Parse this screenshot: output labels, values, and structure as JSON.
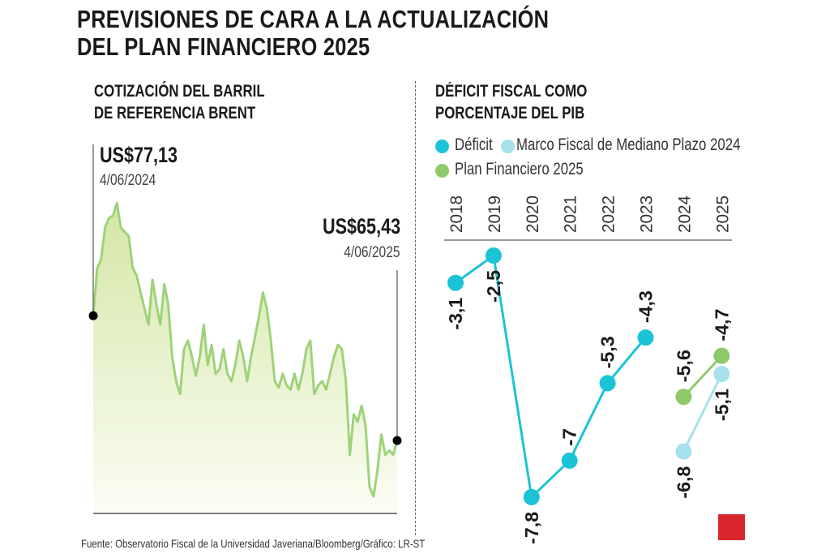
{
  "title_line1": "PREVISIONES DE CARA A LA ACTUALIZACIÓN",
  "title_line2": "DEL PLAN FINANCIERO 2025",
  "source": "Fuente: Observatorio Fiscal de la Universidad Javeriana/Bloomberg/Gráfico: LR-ST",
  "logo": "LR",
  "colors": {
    "deficit": "#1cc3d6",
    "mfmp": "#a6e1ec",
    "plan": "#8ec96a",
    "brent_line": "#9fd27a"
  },
  "chart_data": [
    {
      "type": "area",
      "title_line1": "COTIZACIÓN DEL BARRIL",
      "title_line2": "DE REFERENCIA BRENT",
      "ylim": [
        58.6,
        93.8
      ],
      "start": {
        "label": "US$77,13",
        "date": "4/06/2024",
        "value": 77.13
      },
      "end": {
        "label": "US$65,43",
        "date": "4/06/2025",
        "value": 65.43
      },
      "values": [
        77.1,
        81.6,
        82.4,
        85.4,
        86.3,
        86.5,
        87.7,
        85.4,
        85.0,
        84.6,
        81.6,
        80.9,
        79.3,
        77.8,
        76.3,
        80.5,
        78.2,
        76.3,
        80.1,
        78.2,
        73.3,
        71.0,
        69.8,
        74.0,
        74.8,
        73.3,
        71.5,
        73.3,
        76.3,
        72.5,
        74.4,
        71.7,
        72.1,
        74.0,
        71.7,
        71.0,
        72.5,
        74.8,
        73.3,
        71.0,
        73.3,
        75.2,
        77.1,
        79.3,
        77.8,
        74.8,
        71.0,
        70.4,
        71.7,
        70.6,
        70.2,
        71.7,
        70.2,
        71.7,
        74.0,
        74.8,
        69.8,
        70.6,
        71.0,
        70.2,
        71.7,
        73.3,
        74.4,
        74.0,
        71.0,
        64.1,
        67.9,
        67.2,
        68.7,
        66.8,
        61.1,
        60.2,
        62.6,
        66.0,
        64.1,
        64.5,
        64.1,
        65.43
      ]
    },
    {
      "type": "line",
      "title_line1": "DÉFICIT FISCAL COMO",
      "title_line2": "PORCENTAJE DEL PIB",
      "legend": [
        "Déficit",
        "Marco Fiscal de Mediano Plazo 2024",
        "Plan Financiero 2025"
      ],
      "categories": [
        "2018",
        "2019",
        "2020",
        "2021",
        "2022",
        "2023",
        "2024",
        "2025"
      ],
      "ylim": [
        -8,
        -2
      ],
      "series": [
        {
          "name": "Déficit",
          "x": [
            "2018",
            "2019",
            "2020",
            "2021",
            "2022",
            "2023"
          ],
          "values": [
            -3.1,
            -2.5,
            -7.8,
            -7,
            -5.3,
            -4.3
          ],
          "labels": [
            "-3,1",
            "-2,5",
            "-7,8",
            "-7",
            "-5,3",
            "-4,3"
          ],
          "label_pos": [
            "below",
            "below",
            "below",
            "above",
            "above",
            "above"
          ]
        },
        {
          "name": "Marco Fiscal de Mediano Plazo 2024",
          "x": [
            "2024",
            "2025"
          ],
          "values": [
            -6.8,
            -5.1
          ],
          "labels": [
            "-6,8",
            "-5,1"
          ],
          "label_pos": [
            "below",
            "below"
          ]
        },
        {
          "name": "Plan Financiero 2025",
          "x": [
            "2024",
            "2025"
          ],
          "values": [
            -5.6,
            -4.7
          ],
          "labels": [
            "-5,6",
            "-4,7"
          ],
          "label_pos": [
            "above",
            "above"
          ]
        }
      ]
    }
  ]
}
